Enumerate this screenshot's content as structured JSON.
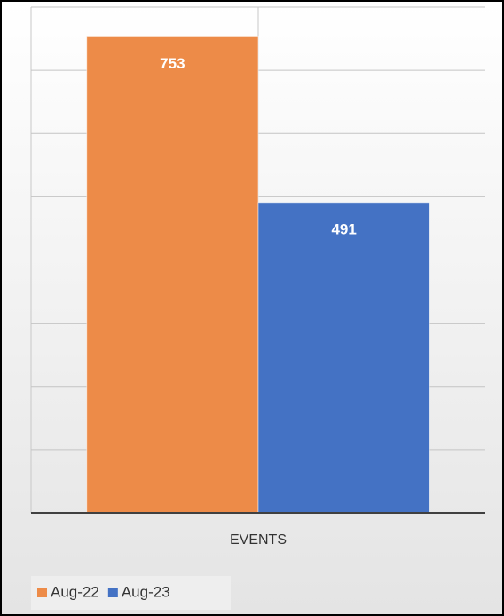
{
  "chart_data": {
    "type": "bar",
    "categories": [
      "EVENTS"
    ],
    "series": [
      {
        "name": "Aug-22",
        "color": "#ed8b48",
        "values": [
          753
        ]
      },
      {
        "name": "Aug-23",
        "color": "#4472c4",
        "values": [
          491
        ]
      }
    ],
    "ylim": [
      0,
      800
    ],
    "yticks": [
      0,
      100,
      200,
      300,
      400,
      500,
      600,
      700,
      800
    ],
    "grid": true,
    "legend": "bottom-left",
    "data_labels": true
  }
}
